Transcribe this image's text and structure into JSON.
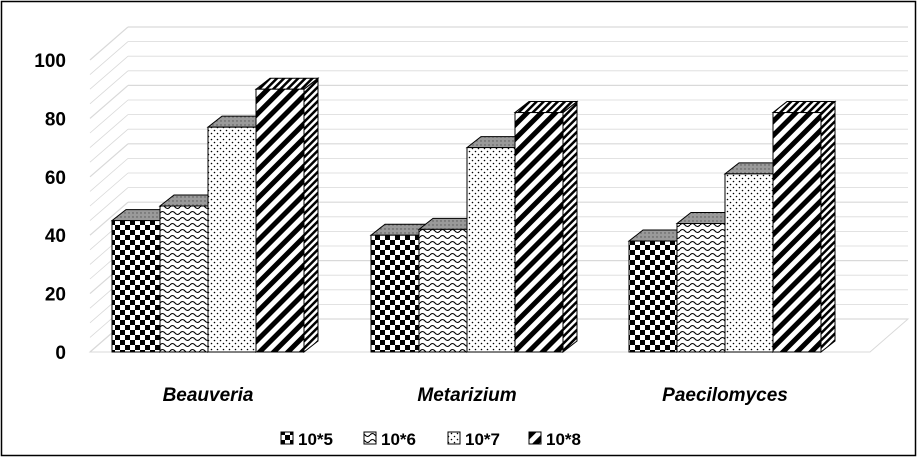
{
  "chart_data": {
    "type": "bar",
    "style": "3d-clustered-column",
    "categories": [
      "Beauveria",
      "Metarizium",
      "Paecilomyces"
    ],
    "series": [
      {
        "name": "10*5",
        "values": [
          45,
          40,
          38
        ],
        "pattern": "checker"
      },
      {
        "name": "10*6",
        "values": [
          50,
          42,
          44
        ],
        "pattern": "wave"
      },
      {
        "name": "10*7",
        "values": [
          77,
          70,
          61
        ],
        "pattern": "dots"
      },
      {
        "name": "10*8",
        "values": [
          90,
          82,
          82
        ],
        "pattern": "diagonal"
      }
    ],
    "yticks": [
      0,
      20,
      40,
      60,
      80,
      100
    ],
    "ylim": [
      0,
      100
    ],
    "title": "",
    "xlabel": "",
    "ylabel": "",
    "grid": true,
    "legend_position": "bottom",
    "colors": {
      "ink": "#000000",
      "grid": "#d9d9d9",
      "background": "#ffffff"
    }
  }
}
